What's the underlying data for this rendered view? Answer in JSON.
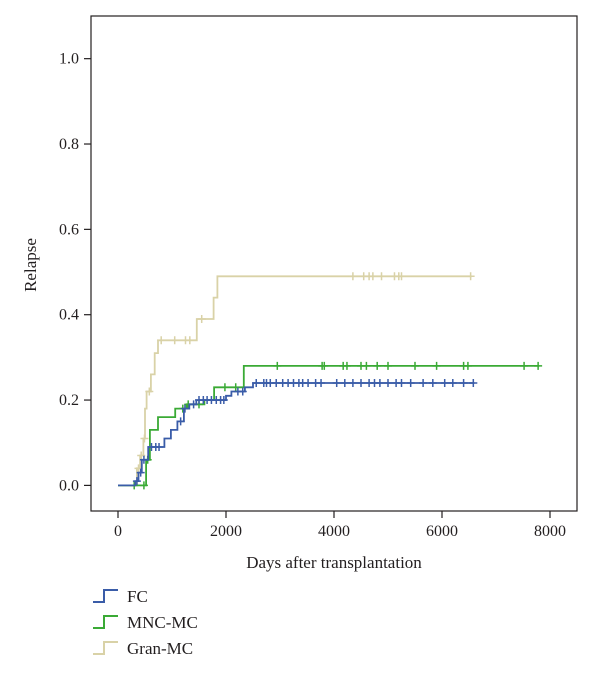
{
  "chart_data": {
    "type": "line",
    "step": true,
    "title": "",
    "xlabel": "Days after transplantation",
    "ylabel": "Relapse",
    "xlim": [
      -500,
      8500
    ],
    "ylim": [
      -0.06,
      1.1
    ],
    "xticks": [
      0,
      2000,
      4000,
      6000,
      8000
    ],
    "yticks": [
      0.0,
      0.2,
      0.4,
      0.6,
      0.8,
      1.0
    ],
    "xtick_labels": [
      "0",
      "2000",
      "4000",
      "6000",
      "8000"
    ],
    "ytick_labels": [
      "0.0",
      "0.2",
      "0.4",
      "0.6",
      "0.8",
      "1.0"
    ],
    "grid": false,
    "legend_position": "bottom-left",
    "series": [
      {
        "name": "FC",
        "color": "#3a5ca8",
        "points": [
          [
            0,
            0
          ],
          [
            320,
            0
          ],
          [
            320,
            0.01
          ],
          [
            380,
            0.01
          ],
          [
            380,
            0.03
          ],
          [
            440,
            0.03
          ],
          [
            440,
            0.06
          ],
          [
            560,
            0.06
          ],
          [
            560,
            0.09
          ],
          [
            860,
            0.09
          ],
          [
            860,
            0.11
          ],
          [
            980,
            0.11
          ],
          [
            980,
            0.13
          ],
          [
            1100,
            0.13
          ],
          [
            1100,
            0.15
          ],
          [
            1220,
            0.15
          ],
          [
            1220,
            0.18
          ],
          [
            1320,
            0.18
          ],
          [
            1320,
            0.19
          ],
          [
            1450,
            0.19
          ],
          [
            1450,
            0.2
          ],
          [
            2000,
            0.2
          ],
          [
            2000,
            0.21
          ],
          [
            2100,
            0.21
          ],
          [
            2100,
            0.22
          ],
          [
            2350,
            0.22
          ],
          [
            2350,
            0.23
          ],
          [
            2500,
            0.23
          ],
          [
            2500,
            0.24
          ],
          [
            6600,
            0.24
          ]
        ],
        "censor_x": [
          350,
          420,
          480,
          620,
          700,
          760,
          1160,
          1240,
          1400,
          1500,
          1580,
          1650,
          1730,
          1820,
          1900,
          1960,
          2220,
          2310,
          2560,
          2700,
          2750,
          2820,
          2930,
          3050,
          3150,
          3250,
          3350,
          3420,
          3520,
          3660,
          3760,
          4050,
          4200,
          4350,
          4500,
          4650,
          4750,
          4850,
          5000,
          5150,
          5250,
          5420,
          5650,
          5830,
          6050,
          6200,
          6400,
          6580
        ]
      },
      {
        "name": "MNC-MC",
        "color": "#3aaa35",
        "points": [
          [
            0,
            0
          ],
          [
            520,
            0
          ],
          [
            520,
            0.06
          ],
          [
            590,
            0.06
          ],
          [
            590,
            0.13
          ],
          [
            740,
            0.13
          ],
          [
            740,
            0.16
          ],
          [
            1060,
            0.16
          ],
          [
            1060,
            0.18
          ],
          [
            1270,
            0.18
          ],
          [
            1270,
            0.19
          ],
          [
            1600,
            0.19
          ],
          [
            1600,
            0.2
          ],
          [
            1780,
            0.2
          ],
          [
            1780,
            0.23
          ],
          [
            2330,
            0.23
          ],
          [
            2330,
            0.28
          ],
          [
            7800,
            0.28
          ]
        ],
        "censor_x": [
          300,
          480,
          550,
          1200,
          1300,
          1500,
          1980,
          2180,
          2950,
          3780,
          3820,
          4170,
          4240,
          4500,
          4600,
          4800,
          5000,
          5500,
          5900,
          6400,
          6480,
          7520,
          7780
        ]
      },
      {
        "name": "Gran-MC",
        "color": "#d9d2a7",
        "points": [
          [
            0,
            0
          ],
          [
            350,
            0
          ],
          [
            350,
            0.04
          ],
          [
            410,
            0.04
          ],
          [
            410,
            0.07
          ],
          [
            470,
            0.07
          ],
          [
            470,
            0.11
          ],
          [
            500,
            0.11
          ],
          [
            500,
            0.18
          ],
          [
            530,
            0.18
          ],
          [
            530,
            0.22
          ],
          [
            610,
            0.22
          ],
          [
            610,
            0.26
          ],
          [
            680,
            0.26
          ],
          [
            680,
            0.31
          ],
          [
            740,
            0.31
          ],
          [
            740,
            0.34
          ],
          [
            1460,
            0.34
          ],
          [
            1460,
            0.39
          ],
          [
            1770,
            0.39
          ],
          [
            1770,
            0.44
          ],
          [
            1840,
            0.44
          ],
          [
            1840,
            0.49
          ],
          [
            6550,
            0.49
          ]
        ],
        "censor_x": [
          380,
          430,
          490,
          580,
          800,
          1050,
          1250,
          1330,
          1550,
          4350,
          4550,
          4650,
          4720,
          4880,
          5120,
          5200,
          5250,
          6530
        ]
      }
    ]
  }
}
